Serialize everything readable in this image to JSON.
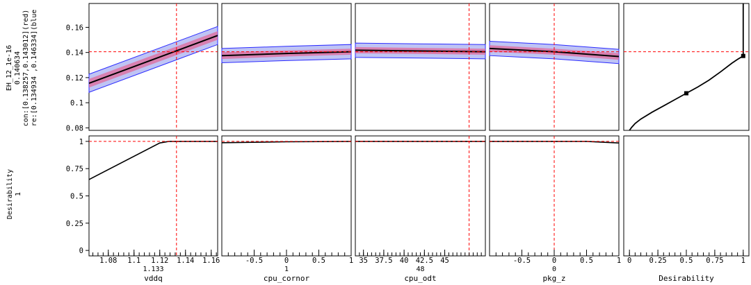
{
  "chart_data": {
    "type": "line",
    "response": {
      "name": "EH_12_1e-16",
      "value": "0.140634",
      "confidence_interval": "con:[0.138257,0.143012](red)",
      "prediction_interval": "re:[0.134934 ,0.146334](blue",
      "yticks": [
        "0.16",
        "0.14",
        "0.12",
        "0.1",
        "0.08"
      ],
      "ytick_values": [
        0.16,
        0.14,
        0.12,
        0.1,
        0.08
      ],
      "ylim": [
        0.078,
        0.179
      ],
      "current": 0.1406
    },
    "desirability": {
      "name": "Desirability",
      "value": "1",
      "yticks": [
        "1",
        "0.75",
        "0.5",
        "0.25",
        "0"
      ],
      "ytick_values": [
        1,
        0.75,
        0.5,
        0.25,
        0
      ],
      "ylim": [
        -0.05,
        1.05
      ],
      "current": 1
    },
    "factors": [
      {
        "name": "vddq",
        "current_label": "1.133",
        "current": 1.133,
        "xlim": [
          1.065,
          1.165
        ],
        "xticks": [
          "1.08",
          "1.1",
          "1.12",
          "1.14",
          "1.16"
        ],
        "xtick_values": [
          1.08,
          1.1,
          1.12,
          1.14,
          1.16
        ],
        "x": [
          1.065,
          1.165
        ],
        "pred": [
          0.1155,
          0.1535
        ],
        "ci": [
          0.0034,
          0.0034
        ],
        "pi": [
          0.0072,
          0.0072
        ],
        "desirability": {
          "x": [
            1.065,
            1.12,
            1.127,
            1.165
          ],
          "y": [
            0.65,
            0.985,
            1.0,
            1.0
          ]
        }
      },
      {
        "name": "cpu_cornor",
        "current_label": "1",
        "current": 1,
        "xlim": [
          -1,
          1
        ],
        "xticks": [
          "-0.5",
          "0",
          "0.5",
          "1"
        ],
        "xtick_values": [
          -0.5,
          0,
          0.5,
          1
        ],
        "x": [
          -1,
          0,
          1
        ],
        "pred": [
          0.1375,
          0.1392,
          0.1406
        ],
        "ci": [
          0.0027,
          0.0024,
          0.0024
        ],
        "pi": [
          0.0057,
          0.0057,
          0.0057
        ],
        "desirability": {
          "x": [
            -1,
            0,
            1
          ],
          "y": [
            0.988,
            0.996,
            1.0
          ]
        }
      },
      {
        "name": "cpu_odt",
        "current_label": "48",
        "current": 48,
        "xlim": [
          34,
          50
        ],
        "xticks": [
          "35",
          "37.5",
          "40",
          "42.5",
          "45"
        ],
        "xtick_values": [
          35,
          37.5,
          40,
          42.5,
          45
        ],
        "x": [
          34,
          42,
          50
        ],
        "pred": [
          0.1418,
          0.1412,
          0.1406
        ],
        "ci": [
          0.0025,
          0.0024,
          0.0024
        ],
        "pi": [
          0.0057,
          0.0057,
          0.0057
        ],
        "desirability": {
          "x": [
            34,
            50
          ],
          "y": [
            1.0,
            1.0
          ]
        }
      },
      {
        "name": "pkg_z",
        "current_label": "0",
        "current": 0,
        "xlim": [
          -1,
          1
        ],
        "xticks": [
          "-0.5",
          "0",
          "0.5",
          "1"
        ],
        "xtick_values": [
          -0.5,
          0,
          0.5,
          1
        ],
        "x": [
          -1,
          0,
          1
        ],
        "pred": [
          0.1432,
          0.1406,
          0.1368
        ],
        "ci": [
          0.0026,
          0.0024,
          0.0026
        ],
        "pi": [
          0.0057,
          0.0057,
          0.0057
        ],
        "desirability": {
          "x": [
            -1,
            0.5,
            1
          ],
          "y": [
            1.0,
            1.0,
            0.985
          ]
        }
      }
    ],
    "desirability_function": {
      "label": "Desirability",
      "xticks": [
        "0",
        "0.25",
        "0.5",
        "0.75",
        "1"
      ],
      "xtick_values": [
        0,
        0.25,
        0.5,
        0.75,
        1
      ],
      "xlim": [
        -0.05,
        1.05
      ],
      "curve": {
        "x": [
          0.0,
          0.02,
          0.05,
          0.1,
          0.2,
          0.3,
          0.4,
          0.5,
          0.6,
          0.7,
          0.8,
          0.9,
          0.95,
          1.0,
          1.0
        ],
        "y": [
          0.078,
          0.0805,
          0.0835,
          0.087,
          0.0925,
          0.0975,
          0.1025,
          0.1075,
          0.1125,
          0.118,
          0.1245,
          0.1315,
          0.1345,
          0.1372,
          0.179
        ]
      },
      "points": [
        {
          "x": 0.5,
          "y": 0.1075
        },
        {
          "x": 1.0,
          "y": 0.1372
        }
      ]
    },
    "colors": {
      "pred": "#000000",
      "ci_fill": "#e06a9a",
      "pi_fill": "#aab0f0",
      "pi_edge": "#2a2aff",
      "ref": "#ff0000",
      "frame": "#000000"
    }
  }
}
